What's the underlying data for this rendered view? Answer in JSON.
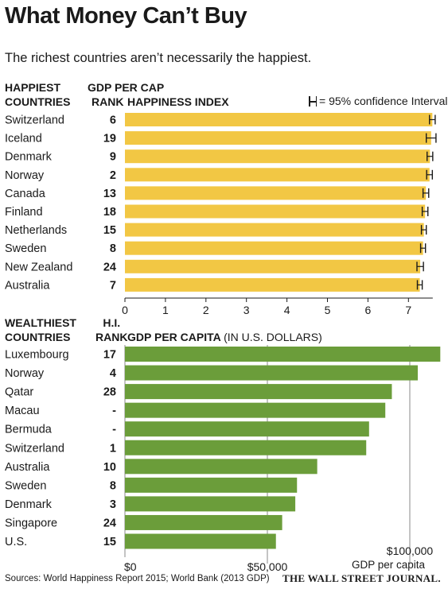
{
  "title": "What Money Can’t Buy",
  "subtitle": "The richest countries aren’t necessarily the happiest.",
  "happy_section": {
    "col_header_1": "HAPPIEST",
    "col_header_2": "COUNTRIES",
    "rank_header_1": "GDP PER CAP",
    "rank_header_2": "RANK",
    "index_header": "HAPPINESS INDEX",
    "ci_note": "= 95% confidence Interval"
  },
  "wealth_section": {
    "col_header_1": "WEALTHIEST",
    "col_header_2": "COUNTRIES",
    "rank_header_1": "H.I.",
    "rank_header_2": "RANK",
    "gdp_header": "GDP PER CAPITA",
    "gdp_header_suffix": "(IN U.S. DOLLARS)",
    "axis_note": "GDP per capita"
  },
  "colors": {
    "happy_bar": "#f2c744",
    "wealth_bar": "#6b9d3a",
    "grid": "#8a8a8a",
    "text": "#1a1a1a"
  },
  "chart_data": [
    {
      "type": "bar",
      "orientation": "horizontal",
      "title": "HAPPINESS INDEX",
      "categories": [
        "Switzerland",
        "Iceland",
        "Denmark",
        "Norway",
        "Canada",
        "Finland",
        "Netherlands",
        "Sweden",
        "New Zealand",
        "Australia"
      ],
      "ranks": [
        "6",
        "19",
        "9",
        "2",
        "13",
        "18",
        "15",
        "8",
        "24",
        "7"
      ],
      "values": [
        7.59,
        7.56,
        7.53,
        7.52,
        7.43,
        7.41,
        7.38,
        7.36,
        7.29,
        7.28
      ],
      "ci": [
        [
          7.52,
          7.66
        ],
        [
          7.44,
          7.68
        ],
        [
          7.46,
          7.6
        ],
        [
          7.45,
          7.59
        ],
        [
          7.36,
          7.5
        ],
        [
          7.34,
          7.48
        ],
        [
          7.32,
          7.44
        ],
        [
          7.3,
          7.42
        ],
        [
          7.21,
          7.37
        ],
        [
          7.22,
          7.34
        ]
      ],
      "xlim": [
        0,
        7.6
      ],
      "xticks": [
        0,
        1,
        2,
        3,
        4,
        5,
        6,
        7
      ],
      "xtick_labels": [
        "0",
        "1",
        "2",
        "3",
        "4",
        "5",
        "6",
        "7"
      ],
      "grid": false
    },
    {
      "type": "bar",
      "orientation": "horizontal",
      "title": "GDP PER CAPITA",
      "categories": [
        "Luxembourg",
        "Norway",
        "Qatar",
        "Macau",
        "Bermuda",
        "Switzerland",
        "Australia",
        "Sweden",
        "Denmark",
        "Singapore",
        "U.S."
      ],
      "ranks": [
        "17",
        "4",
        "28",
        "-",
        "-",
        "1",
        "10",
        "8",
        "3",
        "24",
        "15"
      ],
      "values": [
        110700,
        102800,
        93700,
        91400,
        85700,
        84700,
        67500,
        60400,
        59800,
        55200,
        53000
      ],
      "xlim": [
        0,
        110700
      ],
      "xticks": [
        0,
        50000,
        100000
      ],
      "xtick_labels": [
        "$0",
        "$50,000",
        "$100,000"
      ],
      "grid": true
    }
  ],
  "sources": "Sources: World Happiness Report 2015;  World Bank (2013 GDP)",
  "publisher": "THE WALL STREET JOURNAL."
}
